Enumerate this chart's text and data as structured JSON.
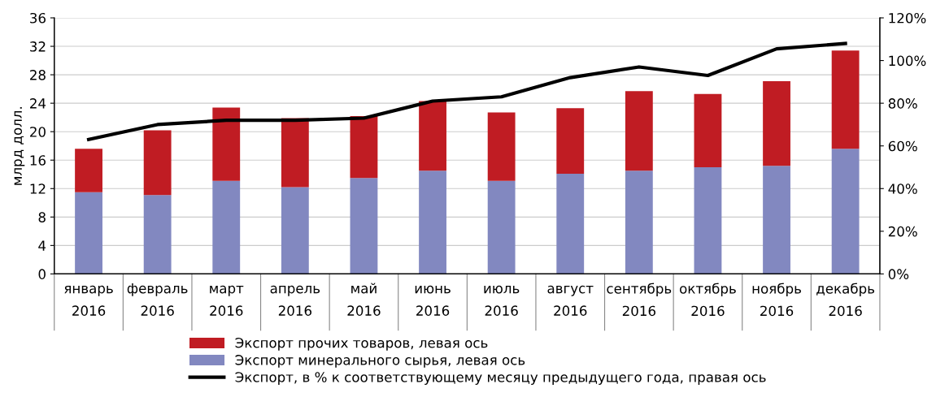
{
  "chart_data": {
    "type": "bar",
    "stacked": true,
    "ylabel": "млрд долл.",
    "categories": [
      "январь\n2016",
      "февраль\n2016",
      "март\n2016",
      "апрель\n2016",
      "май\n2016",
      "июнь\n2016",
      "июль\n2016",
      "август\n2016",
      "сентябрь\n2016",
      "октябрь\n2016",
      "ноябрь\n2016",
      "декабрь\n2016"
    ],
    "series": [
      {
        "name": "Экспорт минерального сырья, левая ось",
        "color": "#8288c0",
        "values": [
          11.5,
          11.1,
          13.1,
          12.2,
          13.5,
          14.5,
          13.1,
          14.1,
          14.5,
          15.0,
          15.2,
          17.6
        ]
      },
      {
        "name": "Экспорт прочих товаров, левая ось",
        "color": "#c01c23",
        "values": [
          6.1,
          9.1,
          10.3,
          9.7,
          8.7,
          9.8,
          9.6,
          9.2,
          11.2,
          10.3,
          11.9,
          13.8
        ]
      },
      {
        "name": "Экспорт, в % к соответствующему месяцу предыдущего года, правая ось",
        "type": "line",
        "axis": "y2",
        "color": "#000000",
        "values": [
          63,
          70,
          72,
          72,
          73,
          81,
          83,
          92,
          97,
          93,
          105.5,
          108
        ]
      }
    ],
    "ylim": [
      0,
      36
    ],
    "yticks": [
      0,
      4,
      8,
      12,
      16,
      20,
      24,
      28,
      32,
      36
    ],
    "y2lim": [
      0,
      120
    ],
    "y2ticks": [
      {
        "value": 0,
        "label": "0%"
      },
      {
        "value": 20,
        "label": "20%"
      },
      {
        "value": 40,
        "label": "40%"
      },
      {
        "value": 60,
        "label": "60%"
      },
      {
        "value": 80,
        "label": "80%"
      },
      {
        "value": 100,
        "label": "100%"
      },
      {
        "value": 120,
        "label": "120%"
      }
    ],
    "grid": "y",
    "legend": "bottom",
    "marker": "none",
    "line_style": "solid"
  }
}
